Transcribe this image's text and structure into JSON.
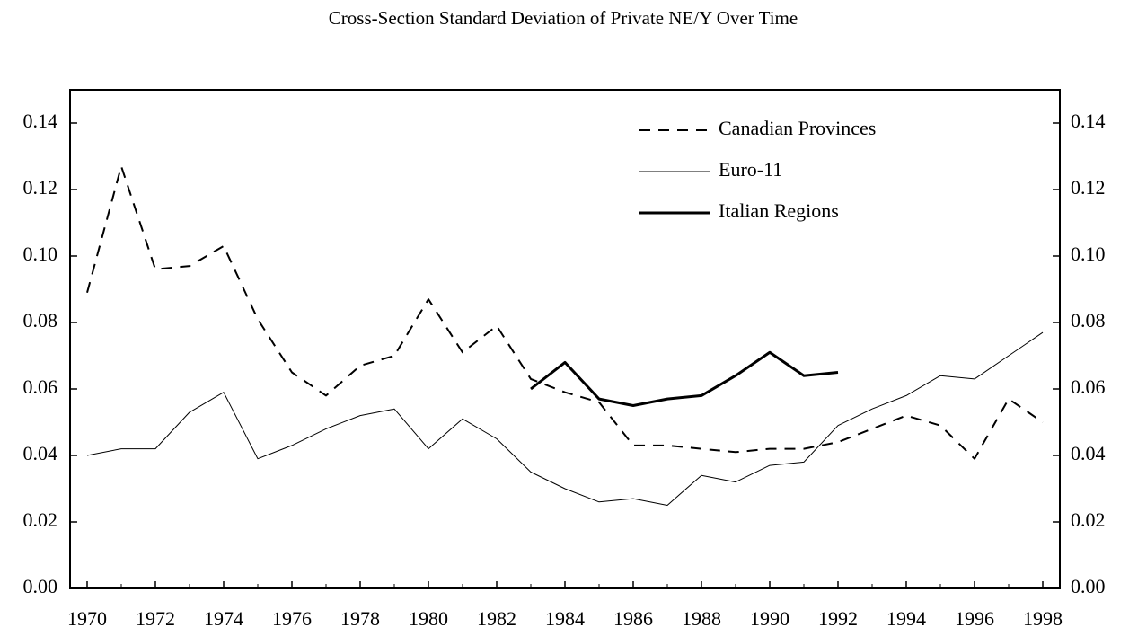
{
  "chart_data": {
    "type": "line",
    "title": "Cross-Section Standard Deviation of Private NE/Y Over Time",
    "x": [
      1970,
      1971,
      1972,
      1973,
      1974,
      1975,
      1976,
      1977,
      1978,
      1979,
      1980,
      1981,
      1982,
      1983,
      1984,
      1985,
      1986,
      1987,
      1988,
      1989,
      1990,
      1991,
      1992,
      1993,
      1994,
      1995,
      1996,
      1997,
      1998
    ],
    "series": [
      {
        "name": "Canadian Provinces",
        "color": "#000000",
        "line_style": "dashed",
        "line_width": 2,
        "values": [
          0.089,
          0.127,
          0.096,
          0.097,
          0.103,
          0.081,
          0.065,
          0.058,
          0.067,
          0.07,
          0.087,
          0.071,
          0.079,
          0.063,
          0.059,
          0.056,
          0.043,
          0.043,
          0.042,
          0.041,
          0.042,
          0.042,
          0.044,
          0.048,
          0.052,
          0.049,
          0.039,
          0.057,
          0.05
        ]
      },
      {
        "name": "Euro-11",
        "color": "#000000",
        "line_style": "solid",
        "line_width": 1,
        "values": [
          0.04,
          0.042,
          0.042,
          0.053,
          0.059,
          0.039,
          0.043,
          0.048,
          0.052,
          0.054,
          0.042,
          0.051,
          0.045,
          0.035,
          0.03,
          0.026,
          0.027,
          0.025,
          0.034,
          0.032,
          0.037,
          0.038,
          0.049,
          0.054,
          0.058,
          0.064,
          0.063,
          0.07,
          0.077
        ]
      },
      {
        "name": "Italian Regions",
        "color": "#000000",
        "line_style": "solid",
        "line_width": 3,
        "values": [
          null,
          null,
          null,
          null,
          null,
          null,
          null,
          null,
          null,
          null,
          null,
          null,
          null,
          0.06,
          0.068,
          0.057,
          0.055,
          0.057,
          0.058,
          0.064,
          0.071,
          0.064,
          0.065,
          null,
          null,
          null,
          null,
          null,
          null
        ]
      }
    ],
    "xlim": [
      1969.5,
      1998.5
    ],
    "xticks": [
      1970,
      1972,
      1974,
      1976,
      1978,
      1980,
      1982,
      1984,
      1986,
      1988,
      1990,
      1992,
      1994,
      1996,
      1998
    ],
    "x_minor_ticks": [
      1971,
      1973,
      1975,
      1977,
      1979,
      1981,
      1983,
      1985,
      1987,
      1989,
      1991,
      1993,
      1995,
      1997
    ],
    "ylim": [
      0,
      0.15
    ],
    "yticks": [
      {
        "value": 0,
        "label": "0.00"
      },
      0.02,
      0.04,
      0.06,
      0.08,
      {
        "value": 0.1,
        "label": "0.10"
      },
      0.12,
      0.14
    ],
    "y2lim": [
      0,
      0.15
    ],
    "y2ticks": [
      {
        "value": 0,
        "label": "0.00"
      },
      0.02,
      0.04,
      0.06,
      0.08,
      {
        "value": 0.1,
        "label": "0.10"
      },
      0.12,
      0.14
    ],
    "legend": "upper right"
  }
}
